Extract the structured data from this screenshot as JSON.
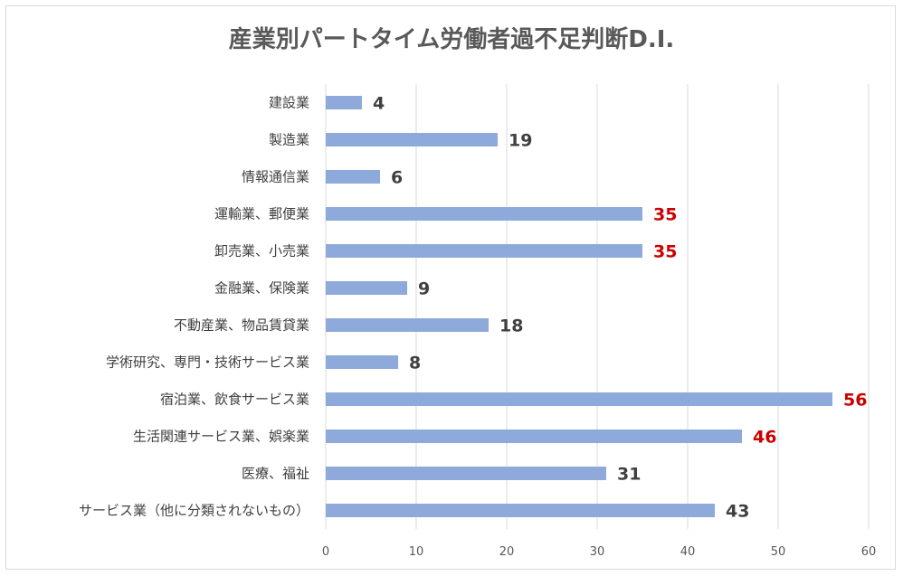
{
  "chart_data": {
    "type": "bar",
    "orientation": "horizontal",
    "title": "産業別パートタイム労働者過不足判断D.I.",
    "categories": [
      "建設業",
      "製造業",
      "情報通信業",
      "運輸業、郵便業",
      "卸売業、小売業",
      "金融業、保険業",
      "不動産業、物品賃貸業",
      "学術研究、専門・技術サービス業",
      "宿泊業、飲食サービス業",
      "生活関連サービス業、娯楽業",
      "医療、福祉",
      "サービス業（他に分類されないもの）"
    ],
    "values": [
      4,
      19,
      6,
      35,
      35,
      9,
      18,
      8,
      56,
      46,
      31,
      43
    ],
    "highlighted": [
      false,
      false,
      false,
      true,
      true,
      false,
      false,
      false,
      true,
      true,
      false,
      false
    ],
    "xlim": [
      0,
      60
    ],
    "xticks": [
      0,
      10,
      20,
      30,
      40,
      50,
      60
    ],
    "xlabel": "",
    "ylabel": "",
    "grid": "vertical",
    "legend": "none",
    "colors": {
      "bar": "#8eaadb",
      "label": "#404040",
      "highlight_label": "#cc0000",
      "grid": "#d9d9d9"
    }
  }
}
